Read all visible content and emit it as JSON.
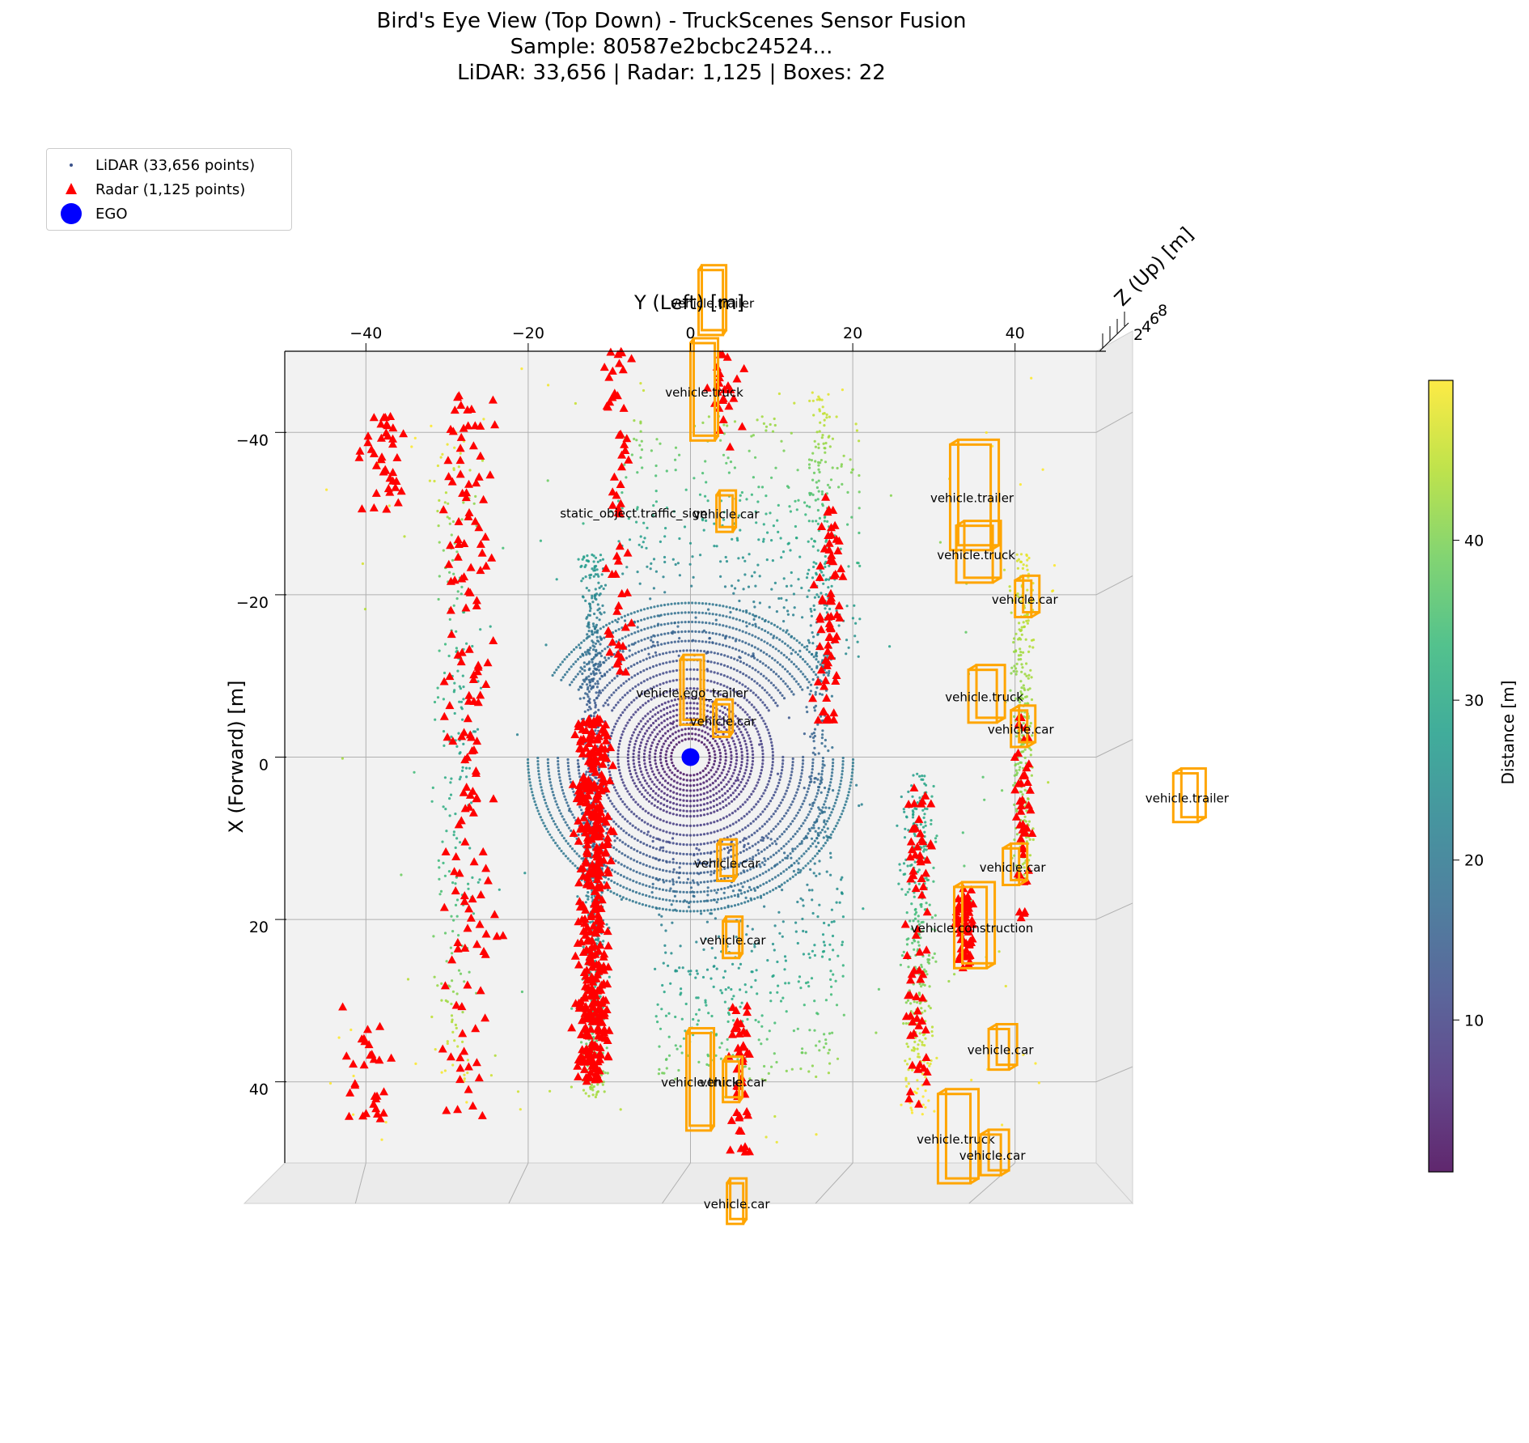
{
  "title": {
    "line1": "Bird's Eye View (Top Down) - TruckScenes Sensor Fusion",
    "line2": "Sample: 80587e2bcbc24524...",
    "line3": "LiDAR: 33,656 | Radar: 1,125 | Boxes: 22"
  },
  "legend": {
    "lidar": "LiDAR (33,656 points)",
    "radar": "Radar (1,125 points)",
    "ego": "EGO"
  },
  "colors": {
    "radar": "#ff0000",
    "ego": "#0000ff",
    "box": "#ffa500",
    "pane": "#f2f2f2",
    "grid": "#b0b0b0"
  },
  "colorbar": {
    "label": "Distance [m]",
    "colormap": "viridis",
    "range": [
      0.5,
      50
    ],
    "ticks": [
      10,
      20,
      30,
      40
    ]
  },
  "chart_data": {
    "type": "scatter",
    "xlabel": "Y (Left) [m]",
    "ylabel": "X (Forward) [m]",
    "zlabel": "Z (Up) [m]",
    "xlim": [
      -50,
      50
    ],
    "ylim": [
      -50,
      50
    ],
    "xticks": [
      -40,
      -20,
      0,
      20,
      40
    ],
    "yticks": [
      -40,
      -20,
      0,
      20,
      40
    ],
    "zticks": [
      2,
      4,
      6,
      8
    ],
    "ego": {
      "y": 0,
      "x": 0
    },
    "boxes": [
      {
        "label": "vehicle.trailer",
        "y": 2.5,
        "x": -56,
        "w": 3,
        "l": 8
      },
      {
        "label": "vehicle.truck",
        "y": 1.5,
        "x": -45,
        "w": 3,
        "l": 12
      },
      {
        "label": "vehicle.car",
        "y": 4.2,
        "x": -30,
        "w": 2,
        "l": 4.5
      },
      {
        "label": "vehicle.trailer",
        "y": 34.5,
        "x": -32,
        "w": 5,
        "l": 13
      },
      {
        "label": "vehicle.truck",
        "y": 35,
        "x": -25,
        "w": 4.5,
        "l": 7
      },
      {
        "label": "vehicle.car",
        "y": 41,
        "x": -19.5,
        "w": 2,
        "l": 4.5
      },
      {
        "label": "vehicle.truck",
        "y": 36,
        "x": -7.5,
        "w": 3.5,
        "l": 6.5
      },
      {
        "label": "vehicle.car",
        "y": 40.5,
        "x": -3.5,
        "w": 2,
        "l": 4.5
      },
      {
        "label": "vehicle.ego_trailer",
        "y": 0,
        "x": -8,
        "w": 2.5,
        "l": 8
      },
      {
        "label": "vehicle.car",
        "y": 3.8,
        "x": -4.5,
        "w": 2,
        "l": 4
      },
      {
        "label": "vehicle.car",
        "y": 4.3,
        "x": 13,
        "w": 2,
        "l": 4.5
      },
      {
        "label": "vehicle.car",
        "y": 39.5,
        "x": 13.5,
        "w": 2,
        "l": 4.5
      },
      {
        "label": "vehicle.construction",
        "y": 34.5,
        "x": 21,
        "w": 4,
        "l": 10
      },
      {
        "label": "vehicle.car",
        "y": 5,
        "x": 22.5,
        "w": 2,
        "l": 4.5
      },
      {
        "label": "vehicle.car",
        "y": 38,
        "x": 36,
        "w": 2.5,
        "l": 5
      },
      {
        "label": "vehicle.truck",
        "y": 1,
        "x": 40,
        "w": 3,
        "l": 12
      },
      {
        "label": "vehicle.car",
        "y": 5,
        "x": 40,
        "w": 2,
        "l": 5
      },
      {
        "label": "vehicle.truck",
        "y": 32.5,
        "x": 47,
        "w": 4,
        "l": 11
      },
      {
        "label": "vehicle.car",
        "y": 37,
        "x": 49,
        "w": 2.5,
        "l": 5
      },
      {
        "label": "vehicle.car",
        "y": 5.5,
        "x": 55,
        "w": 2,
        "l": 5
      },
      {
        "label": "vehicle.trailer",
        "y": 61,
        "x": 5,
        "w": 3,
        "l": 6
      }
    ],
    "annotations": [
      {
        "text": "static_object.traffic_sign",
        "y": -7,
        "x": -30
      }
    ]
  }
}
